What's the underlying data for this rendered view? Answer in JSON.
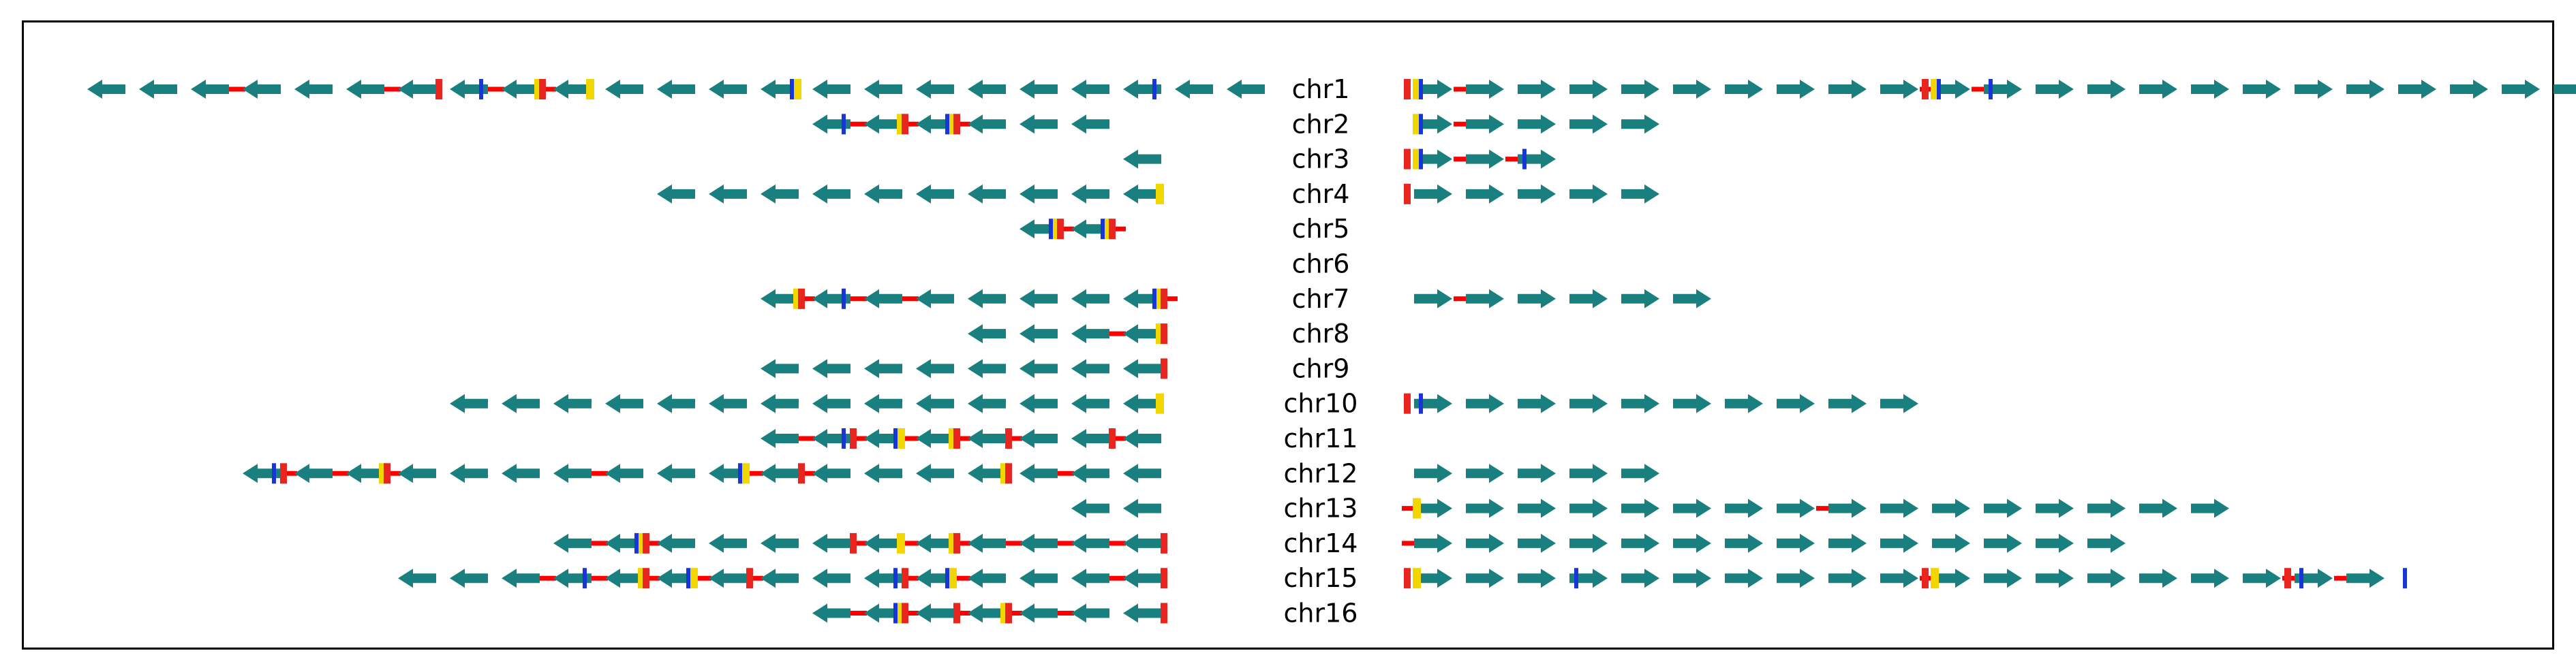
{
  "colors": {
    "gene": "#1a7f7f",
    "link": "#ff0000",
    "mark_red": "#e8261f",
    "mark_yellow": "#f2d600",
    "mark_blue": "#1836d8"
  },
  "chart_data": {
    "type": "chromosome-gene-arrow-map",
    "chromosomes": [
      {
        "name": "chr1",
        "left": {
          "arrows": 23,
          "start": 1,
          "links": [
            3,
            6,
            8,
            9
          ],
          "marks": {
            "red": [
              7,
              9
            ],
            "yellow": [
              9,
              10,
              14
            ],
            "blue": [
              8,
              14,
              21
            ]
          }
        },
        "right": {
          "arrows": 23,
          "start": 0,
          "links": [
            1,
            10,
            11
          ],
          "marks": {
            "red": [
              0,
              10
            ],
            "yellow": [
              0,
              10
            ],
            "blue": [
              0,
              10,
              11
            ]
          }
        }
      },
      {
        "name": "chr2",
        "left": {
          "arrows": 6,
          "start": 15,
          "links": [
            15,
            16,
            17
          ],
          "marks": {
            "red": [
              16,
              17
            ],
            "yellow": [
              16,
              17
            ],
            "blue": [
              15,
              17
            ]
          }
        },
        "right": {
          "arrows": 5,
          "start": 0,
          "links": [
            1
          ],
          "marks": {
            "red": [],
            "yellow": [
              0
            ],
            "blue": [
              0
            ]
          }
        }
      },
      {
        "name": "chr3",
        "left": {
          "arrows": 1,
          "start": 21,
          "links": [],
          "marks": {
            "red": [],
            "yellow": [],
            "blue": []
          }
        },
        "right": {
          "arrows": 3,
          "start": 0,
          "links": [
            1,
            2
          ],
          "marks": {
            "red": [
              0
            ],
            "yellow": [
              0
            ],
            "blue": [
              0,
              2
            ]
          }
        }
      },
      {
        "name": "chr4",
        "left": {
          "arrows": 10,
          "start": 12,
          "links": [],
          "marks": {
            "red": [],
            "yellow": [
              21
            ],
            "blue": []
          }
        },
        "right": {
          "arrows": 5,
          "start": 0,
          "links": [],
          "marks": {
            "red": [
              0
            ],
            "yellow": [],
            "blue": []
          }
        }
      },
      {
        "name": "chr5",
        "left": {
          "arrows": 2,
          "start": 19,
          "links": [
            19,
            20
          ],
          "marks": {
            "red": [
              19,
              20
            ],
            "yellow": [
              19,
              20
            ],
            "blue": [
              19,
              20
            ]
          }
        },
        "right": {
          "arrows": 0,
          "start": 0,
          "links": [],
          "marks": {
            "red": [],
            "yellow": [],
            "blue": []
          }
        }
      },
      {
        "name": "chr6",
        "left": {
          "arrows": 0,
          "start": 0,
          "links": [],
          "marks": {
            "red": [],
            "yellow": [],
            "blue": []
          }
        },
        "right": {
          "arrows": 0,
          "start": 0,
          "links": [],
          "marks": {
            "red": [],
            "yellow": [],
            "blue": []
          }
        }
      },
      {
        "name": "chr7",
        "left": {
          "arrows": 8,
          "start": 14,
          "links": [
            14,
            15,
            16,
            21
          ],
          "marks": {
            "red": [
              14,
              21
            ],
            "yellow": [
              14,
              21
            ],
            "blue": [
              15,
              21
            ]
          }
        },
        "right": {
          "arrows": 6,
          "start": 0,
          "links": [
            1
          ],
          "marks": {
            "red": [],
            "yellow": [],
            "blue": []
          }
        }
      },
      {
        "name": "chr8",
        "left": {
          "arrows": 4,
          "start": 18,
          "links": [
            20
          ],
          "marks": {
            "red": [
              21
            ],
            "yellow": [
              21
            ],
            "blue": []
          }
        },
        "right": {
          "arrows": 0,
          "start": 0,
          "links": [],
          "marks": {
            "red": [],
            "yellow": [],
            "blue": []
          }
        }
      },
      {
        "name": "chr9",
        "left": {
          "arrows": 8,
          "start": 14,
          "links": [],
          "marks": {
            "red": [
              21
            ],
            "yellow": [],
            "blue": []
          }
        },
        "right": {
          "arrows": 0,
          "start": 0,
          "links": [],
          "marks": {
            "red": [],
            "yellow": [],
            "blue": []
          }
        }
      },
      {
        "name": "chr10",
        "left": {
          "arrows": 14,
          "start": 8,
          "links": [],
          "marks": {
            "red": [],
            "yellow": [
              21
            ],
            "blue": []
          }
        },
        "right": {
          "arrows": 10,
          "start": 0,
          "links": [],
          "marks": {
            "red": [
              0
            ],
            "yellow": [],
            "blue": [
              0
            ]
          }
        }
      },
      {
        "name": "chr11",
        "left": {
          "arrows": 8,
          "start": 14,
          "links": [
            14,
            15,
            16,
            17,
            18,
            20
          ],
          "marks": {
            "red": [
              15,
              17,
              18,
              20
            ],
            "yellow": [
              16,
              17
            ],
            "blue": [
              15,
              16
            ]
          }
        },
        "right": {
          "arrows": 0,
          "start": 0,
          "links": [],
          "marks": {
            "red": [],
            "yellow": [],
            "blue": []
          }
        }
      },
      {
        "name": "chr12",
        "left": {
          "arrows": 18,
          "start": 4,
          "links": [
            4,
            5,
            6,
            10,
            13,
            14,
            19
          ],
          "marks": {
            "red": [
              4,
              6,
              14,
              18
            ],
            "yellow": [
              6,
              13,
              18
            ],
            "blue": [
              4,
              13
            ]
          }
        },
        "right": {
          "arrows": 5,
          "start": 0,
          "links": [],
          "marks": {
            "red": [],
            "yellow": [],
            "blue": []
          }
        }
      },
      {
        "name": "chr13",
        "left": {
          "arrows": 2,
          "start": 20,
          "links": [],
          "marks": {
            "red": [],
            "yellow": [],
            "blue": []
          }
        },
        "right": {
          "arrows": 16,
          "start": 0,
          "links": [
            0,
            8
          ],
          "marks": {
            "red": [],
            "yellow": [
              0
            ],
            "blue": []
          }
        }
      },
      {
        "name": "chr14",
        "left": {
          "arrows": 12,
          "start": 10,
          "links": [
            10,
            11,
            15,
            16,
            17,
            18,
            19,
            20
          ],
          "marks": {
            "red": [
              11,
              15,
              17,
              21
            ],
            "yellow": [
              11,
              16,
              17
            ],
            "blue": [
              11
            ]
          }
        },
        "right": {
          "arrows": 14,
          "start": 0,
          "links": [
            0
          ],
          "marks": {
            "red": [],
            "yellow": [],
            "blue": []
          }
        }
      },
      {
        "name": "chr15",
        "left": {
          "arrows": 15,
          "start": 7,
          "links": [
            9,
            10,
            11,
            12,
            13,
            16,
            17,
            20
          ],
          "marks": {
            "red": [
              11,
              13,
              16,
              21
            ],
            "yellow": [
              11,
              12,
              17
            ],
            "blue": [
              10,
              12,
              16,
              17
            ]
          }
        },
        "right": {
          "arrows": 19,
          "start": 0,
          "links": [
            10,
            17,
            18
          ],
          "marks": {
            "red": [
              0,
              10,
              17
            ],
            "yellow": [
              0,
              10
            ],
            "blue": [
              3,
              17,
              19
            ]
          }
        }
      },
      {
        "name": "chr16",
        "left": {
          "arrows": 7,
          "start": 15,
          "links": [
            15,
            16,
            17,
            18,
            19
          ],
          "marks": {
            "red": [
              16,
              17,
              18,
              21
            ],
            "yellow": [
              16,
              18
            ],
            "blue": [
              16
            ]
          }
        },
        "right": {
          "arrows": 0,
          "start": 0,
          "links": [],
          "marks": {
            "red": [],
            "yellow": [],
            "blue": []
          }
        }
      }
    ]
  }
}
